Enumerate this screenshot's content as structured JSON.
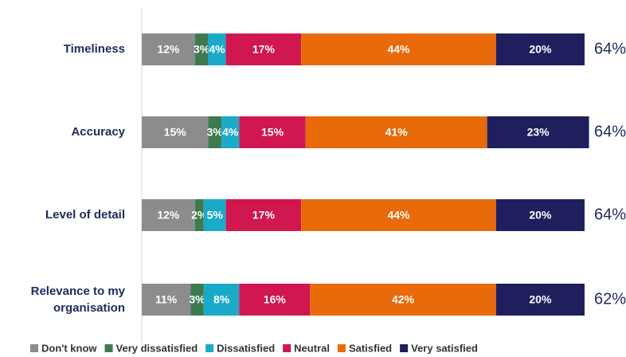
{
  "chart_data": {
    "type": "stacked_barh",
    "categories": [
      "Timeliness",
      "Accuracy",
      "Level of detail",
      "Relevance to my organisation"
    ],
    "xlim": [
      0,
      100
    ],
    "series": [
      {
        "name": "Don't know",
        "color": "#8c8c8c",
        "values": [
          12,
          15,
          12,
          11
        ],
        "value_labels": [
          "12%",
          "15%",
          "12%",
          "11%"
        ]
      },
      {
        "name": "Very dissatisfied",
        "color": "#3e7a4f",
        "values": [
          3,
          3,
          2,
          3
        ],
        "value_labels": [
          "3%",
          "3%",
          "2%",
          "3%"
        ]
      },
      {
        "name": "Dissatisfied",
        "color": "#1aaac8",
        "values": [
          4,
          4,
          5,
          8
        ],
        "value_labels": [
          "4%",
          "4%",
          "5%",
          "8%"
        ]
      },
      {
        "name": "Neutral",
        "color": "#d0174f",
        "values": [
          17,
          15,
          17,
          16
        ],
        "value_labels": [
          "17%",
          "15%",
          "17%",
          "16%"
        ]
      },
      {
        "name": "Satisfied",
        "color": "#e86a0a",
        "values": [
          44,
          41,
          44,
          42
        ],
        "value_labels": [
          "44%",
          "41%",
          "44%",
          "42%"
        ]
      },
      {
        "name": "Very satisfied",
        "color": "#1f1f5e",
        "values": [
          20,
          23,
          20,
          20
        ],
        "value_labels": [
          "20%",
          "23%",
          "20%",
          "20%"
        ]
      }
    ],
    "totals": {
      "values": [
        64,
        64,
        64,
        62
      ],
      "labels": [
        "64%",
        "64%",
        "64%",
        "62%"
      ]
    },
    "legend": "bottom"
  }
}
